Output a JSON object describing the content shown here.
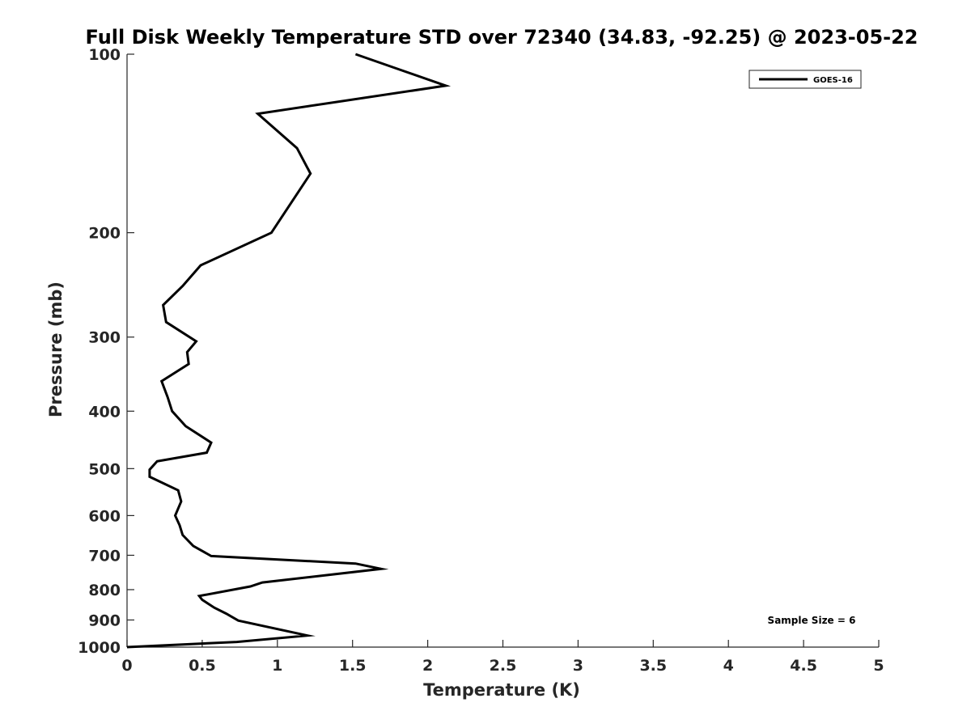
{
  "chart_data": {
    "type": "line",
    "title": "Full Disk Weekly Temperature STD over 72340 (34.83, -92.25) @ 2023-05-22",
    "xlabel": "Temperature (K)",
    "ylabel": "Pressure (mb)",
    "xlim": [
      0,
      5
    ],
    "ylim": [
      100,
      1000
    ],
    "y_scale": "log",
    "y_reversed": true,
    "grid": false,
    "legend_position": "top-right",
    "x_ticks": [
      "0",
      "0.5",
      "1",
      "1.5",
      "2",
      "2.5",
      "3",
      "3.5",
      "4",
      "4.5",
      "5"
    ],
    "y_ticks": [
      "100",
      "200",
      "300",
      "400",
      "500",
      "600",
      "700",
      "800",
      "900",
      "1000"
    ],
    "series": [
      {
        "name": "GOES-16",
        "color": "#000000",
        "x": [
          1.52,
          2.12,
          0.87,
          1.13,
          1.22,
          0.96,
          0.49,
          0.37,
          0.24,
          0.26,
          0.46,
          0.4,
          0.41,
          0.23,
          0.27,
          0.3,
          0.39,
          0.56,
          0.53,
          0.2,
          0.15,
          0.15,
          0.34,
          0.36,
          0.32,
          0.35,
          0.37,
          0.44,
          0.56,
          1.52,
          1.69,
          0.9,
          0.82,
          0.48,
          0.5,
          0.58,
          0.66,
          0.74,
          1.2,
          0.73,
          0.0
        ],
        "y": [
          100,
          113,
          126,
          144,
          159,
          200,
          227,
          246,
          265,
          283,
          305,
          318,
          333,
          356,
          379,
          400,
          424,
          452,
          470,
          486,
          502,
          516,
          544,
          568,
          600,
          623,
          647,
          675,
          702,
          723,
          738,
          778,
          790,
          820,
          832,
          858,
          878,
          902,
          956,
          980,
          1000
        ]
      }
    ],
    "annotations": [
      "Sample Size = 6"
    ]
  }
}
